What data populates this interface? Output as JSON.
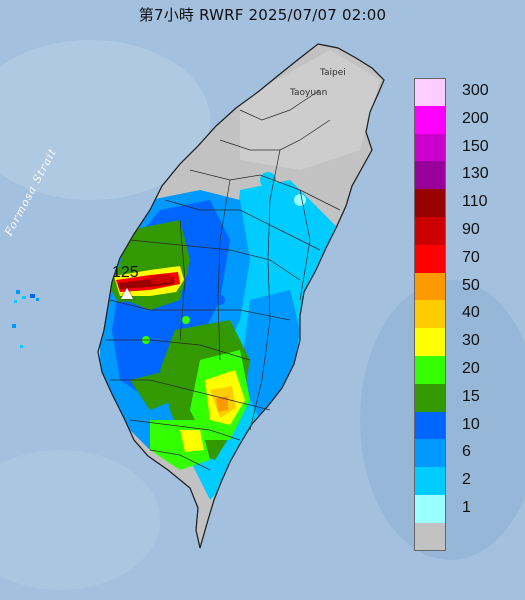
{
  "title": "第7小時  RWRF 2025/07/07 02:00",
  "strait_label": "Formosa Strait",
  "cities": {
    "taipei": "Taipei",
    "taoyuan": "Taoyuan"
  },
  "station": {
    "value": "125",
    "icon": "triangle-marker-icon"
  },
  "legend": [
    {
      "label": "300",
      "color": "#ffccff"
    },
    {
      "label": "200",
      "color": "#ff00ff"
    },
    {
      "label": "150",
      "color": "#cc00cc"
    },
    {
      "label": "130",
      "color": "#990099"
    },
    {
      "label": "110",
      "color": "#990000"
    },
    {
      "label": "90",
      "color": "#cc0000"
    },
    {
      "label": "70",
      "color": "#ff0000"
    },
    {
      "label": "50",
      "color": "#ff9900"
    },
    {
      "label": "40",
      "color": "#ffcc00"
    },
    {
      "label": "30",
      "color": "#ffff00"
    },
    {
      "label": "20",
      "color": "#33ff00"
    },
    {
      "label": "15",
      "color": "#339900"
    },
    {
      "label": "10",
      "color": "#0066ff"
    },
    {
      "label": "6",
      "color": "#0099ff"
    },
    {
      "label": "2",
      "color": "#00ccff"
    },
    {
      "label": "1",
      "color": "#99ffff"
    },
    {
      "label": "",
      "color": "#c2c2c2"
    }
  ]
}
